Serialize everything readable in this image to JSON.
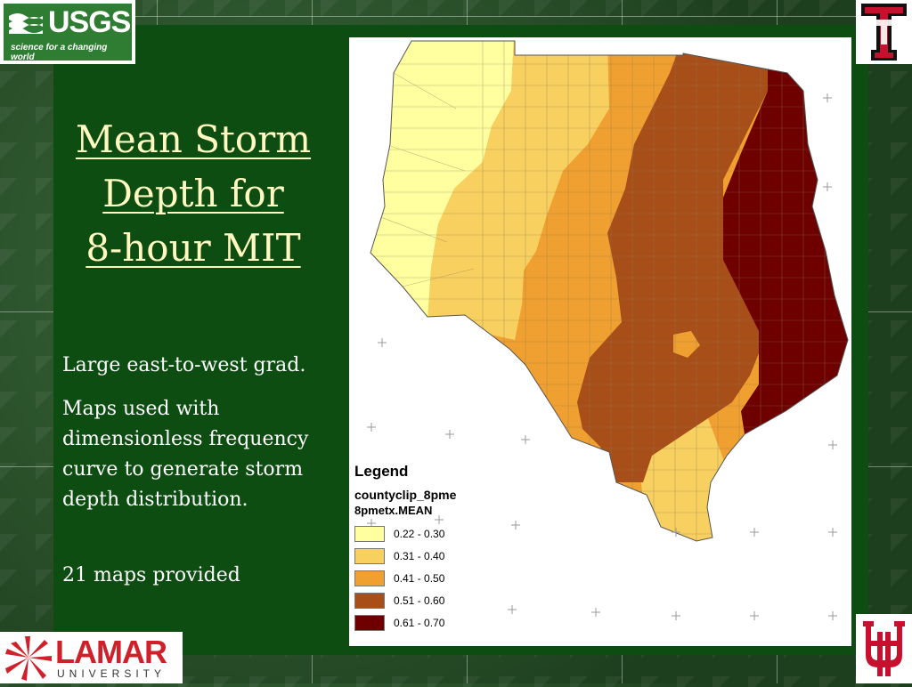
{
  "slide": {
    "title_lines": [
      "Mean Storm",
      "Depth for",
      "8-hour MIT"
    ],
    "bullets": [
      "Large east-to-west grad.",
      "Maps used with dimensionless frequency curve to generate storm depth distribution.",
      "21 maps provided"
    ]
  },
  "logos": {
    "usgs": {
      "name": "USGS",
      "tagline": "science for a changing world"
    },
    "lamar": {
      "name": "LAMAR",
      "sub": "UNIVERSITY"
    },
    "texas_tech": {
      "icon": "double-t-icon"
    },
    "univ_houston": {
      "icon": "interlocking-uh-icon"
    }
  },
  "map": {
    "legend": {
      "title": "Legend",
      "layer": "countyclip_8pme",
      "field": "8pmetx.MEAN",
      "classes": [
        {
          "label": "0.22 - 0.30",
          "color": "#ffffa0"
        },
        {
          "label": "0.31 - 0.40",
          "color": "#f8d060"
        },
        {
          "label": "0.41 - 0.50",
          "color": "#f0a030"
        },
        {
          "label": "0.51 - 0.60",
          "color": "#a84e18"
        },
        {
          "label": "0.61 - 0.70",
          "color": "#6e0000"
        }
      ]
    }
  },
  "colors": {
    "panel": "#0d4d12",
    "title": "#fff8c0",
    "text": "#ffffff"
  }
}
